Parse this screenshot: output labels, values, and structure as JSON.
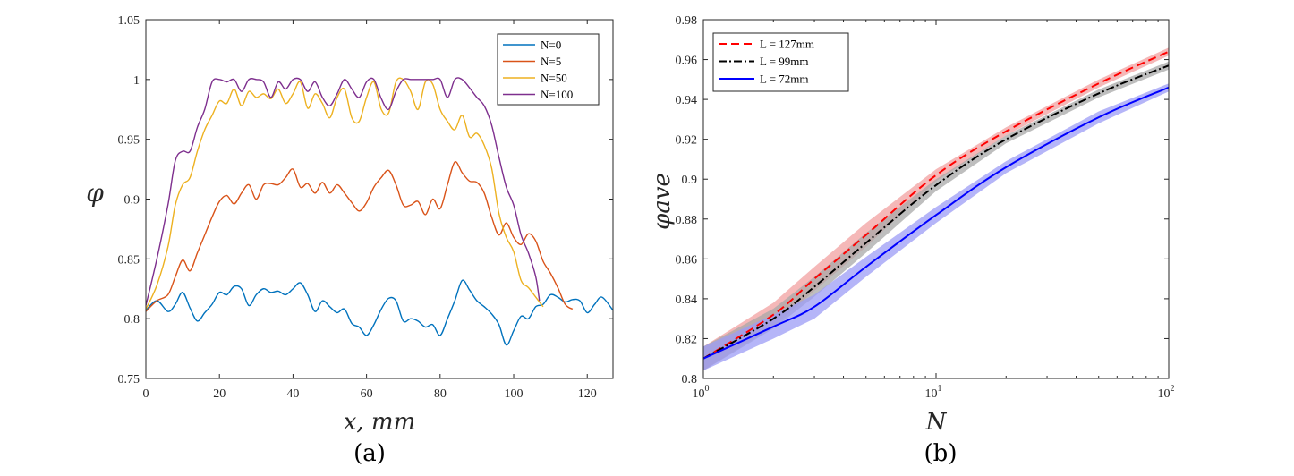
{
  "chart_data": [
    {
      "type": "line",
      "caption": "(a)",
      "xlabel": "x, mm",
      "ylabel": "φ",
      "xlim": [
        0,
        127
      ],
      "ylim": [
        0.75,
        1.05
      ],
      "xticks": [
        "0",
        "20",
        "40",
        "60",
        "80",
        "100",
        "120"
      ],
      "yticks": [
        "0.75",
        "0.8",
        "0.85",
        "0.9",
        "0.95",
        "1",
        "1.05"
      ],
      "legend_position": "top-right",
      "series": [
        {
          "name": "N=0",
          "color": "#0072BD",
          "x": [
            0,
            3,
            6,
            8,
            10,
            12,
            14,
            16,
            18,
            20,
            22,
            24,
            26,
            28,
            30,
            32,
            34,
            36,
            38,
            40,
            42,
            44,
            46,
            48,
            50,
            52,
            54,
            56,
            58,
            60,
            62,
            64,
            66,
            68,
            70,
            72,
            74,
            76,
            78,
            80,
            82,
            84,
            86,
            88,
            90,
            92,
            94,
            96,
            98,
            100,
            102,
            104,
            106,
            108,
            110,
            112,
            114,
            116,
            118,
            120,
            122,
            124,
            127
          ],
          "y": [
            0.807,
            0.815,
            0.806,
            0.812,
            0.822,
            0.809,
            0.798,
            0.805,
            0.812,
            0.822,
            0.82,
            0.827,
            0.825,
            0.811,
            0.82,
            0.825,
            0.822,
            0.823,
            0.82,
            0.825,
            0.83,
            0.82,
            0.806,
            0.815,
            0.81,
            0.805,
            0.808,
            0.796,
            0.793,
            0.786,
            0.795,
            0.808,
            0.817,
            0.815,
            0.798,
            0.8,
            0.798,
            0.793,
            0.795,
            0.786,
            0.8,
            0.815,
            0.832,
            0.824,
            0.815,
            0.81,
            0.804,
            0.795,
            0.778,
            0.79,
            0.802,
            0.8,
            0.81,
            0.812,
            0.82,
            0.818,
            0.814,
            0.816,
            0.815,
            0.805,
            0.812,
            0.818,
            0.807
          ]
        },
        {
          "name": "N=5",
          "color": "#D95319",
          "x": [
            0,
            3,
            6,
            8,
            10,
            12,
            14,
            16,
            18,
            20,
            22,
            24,
            26,
            28,
            30,
            32,
            34,
            36,
            38,
            40,
            42,
            44,
            46,
            48,
            50,
            52,
            54,
            56,
            58,
            60,
            62,
            64,
            66,
            68,
            70,
            72,
            74,
            76,
            78,
            80,
            82,
            84,
            86,
            88,
            90,
            92,
            94,
            96,
            98,
            100,
            102,
            104,
            106,
            108,
            110,
            112,
            114,
            116
          ],
          "y": [
            0.806,
            0.815,
            0.82,
            0.835,
            0.849,
            0.84,
            0.855,
            0.87,
            0.885,
            0.898,
            0.903,
            0.896,
            0.905,
            0.912,
            0.9,
            0.912,
            0.913,
            0.912,
            0.918,
            0.925,
            0.91,
            0.913,
            0.905,
            0.914,
            0.905,
            0.912,
            0.905,
            0.897,
            0.89,
            0.897,
            0.91,
            0.918,
            0.924,
            0.912,
            0.895,
            0.895,
            0.898,
            0.887,
            0.9,
            0.892,
            0.912,
            0.931,
            0.922,
            0.915,
            0.914,
            0.905,
            0.885,
            0.87,
            0.88,
            0.868,
            0.862,
            0.871,
            0.865,
            0.848,
            0.838,
            0.826,
            0.812,
            0.808
          ]
        },
        {
          "name": "N=50",
          "color": "#EDB120",
          "x": [
            0,
            3,
            6,
            8,
            10,
            12,
            14,
            16,
            18,
            20,
            22,
            24,
            26,
            28,
            30,
            32,
            34,
            36,
            38,
            40,
            42,
            44,
            46,
            48,
            50,
            52,
            54,
            56,
            58,
            60,
            62,
            64,
            66,
            68,
            70,
            72,
            74,
            76,
            78,
            80,
            82,
            84,
            86,
            88,
            90,
            92,
            94,
            96,
            98,
            100,
            102,
            104,
            106,
            108
          ],
          "y": [
            0.808,
            0.828,
            0.86,
            0.895,
            0.912,
            0.918,
            0.94,
            0.958,
            0.97,
            0.982,
            0.98,
            0.992,
            0.978,
            0.99,
            0.985,
            0.988,
            0.984,
            0.992,
            0.98,
            0.988,
            0.998,
            0.976,
            0.988,
            0.98,
            0.968,
            0.985,
            0.992,
            0.968,
            0.965,
            0.985,
            0.998,
            0.975,
            0.972,
            0.998,
            1.0,
            0.99,
            0.975,
            0.998,
            0.996,
            0.975,
            0.965,
            0.958,
            0.97,
            0.952,
            0.955,
            0.945,
            0.926,
            0.888,
            0.868,
            0.856,
            0.832,
            0.826,
            0.818,
            0.81
          ]
        },
        {
          "name": "N=100",
          "color": "#7E2F8E",
          "x": [
            0,
            3,
            6,
            8,
            10,
            12,
            14,
            16,
            18,
            20,
            22,
            24,
            26,
            28,
            30,
            32,
            34,
            36,
            38,
            40,
            42,
            44,
            46,
            48,
            50,
            52,
            54,
            56,
            58,
            60,
            62,
            64,
            66,
            68,
            70,
            72,
            74,
            76,
            78,
            80,
            82,
            84,
            86,
            88,
            90,
            92,
            94,
            96,
            98,
            100,
            102,
            104,
            106,
            107
          ],
          "y": [
            0.811,
            0.85,
            0.895,
            0.932,
            0.94,
            0.94,
            0.96,
            0.975,
            0.998,
            1.0,
            0.998,
            1.0,
            0.99,
            1.0,
            1.0,
            0.998,
            0.985,
            0.998,
            0.992,
            1.0,
            1.0,
            0.99,
            0.998,
            0.985,
            0.978,
            0.988,
            1.0,
            0.992,
            0.985,
            0.998,
            1.0,
            0.984,
            0.975,
            0.99,
            1.0,
            1.0,
            1.0,
            1.0,
            1.0,
            1.0,
            0.985,
            1.0,
            1.0,
            0.993,
            0.985,
            0.978,
            0.962,
            0.935,
            0.91,
            0.895,
            0.87,
            0.855,
            0.835,
            0.815
          ]
        }
      ]
    },
    {
      "type": "line",
      "caption": "(b)",
      "xlabel": "N",
      "ylabel": "φave",
      "xscale": "log",
      "xlim": [
        1,
        100
      ],
      "ylim": [
        0.8,
        0.98
      ],
      "xticks": [
        "10^0",
        "10^1",
        "10^2"
      ],
      "yticks": [
        "0.8",
        "0.82",
        "0.84",
        "0.86",
        "0.88",
        "0.9",
        "0.92",
        "0.94",
        "0.96",
        "0.98"
      ],
      "legend_position": "top-left",
      "x": [
        1,
        2,
        3,
        5,
        10,
        20,
        50,
        100
      ],
      "series": [
        {
          "name": "L = 127mm",
          "color": "#FF0000",
          "band_color": "#F2A0A0",
          "linestyle": "dashed",
          "values": [
            0.81,
            0.832,
            0.85,
            0.872,
            0.902,
            0.924,
            0.948,
            0.964
          ],
          "band": [
            0.006,
            0.006,
            0.006,
            0.006,
            0.003,
            0.002,
            0.002,
            0.002
          ]
        },
        {
          "name": "L = 99mm",
          "color": "#000000",
          "band_color": "#A8A8A8",
          "linestyle": "dashdot",
          "values": [
            0.81,
            0.83,
            0.846,
            0.868,
            0.897,
            0.92,
            0.943,
            0.957
          ],
          "band": [
            0.006,
            0.005,
            0.005,
            0.005,
            0.003,
            0.002,
            0.002,
            0.002
          ]
        },
        {
          "name": "L = 72mm",
          "color": "#0000FF",
          "band_color": "#9C9CF6",
          "linestyle": "solid",
          "values": [
            0.81,
            0.826,
            0.836,
            0.856,
            0.882,
            0.906,
            0.931,
            0.946
          ],
          "band": [
            0.006,
            0.006,
            0.006,
            0.005,
            0.004,
            0.003,
            0.003,
            0.002
          ]
        }
      ]
    }
  ]
}
